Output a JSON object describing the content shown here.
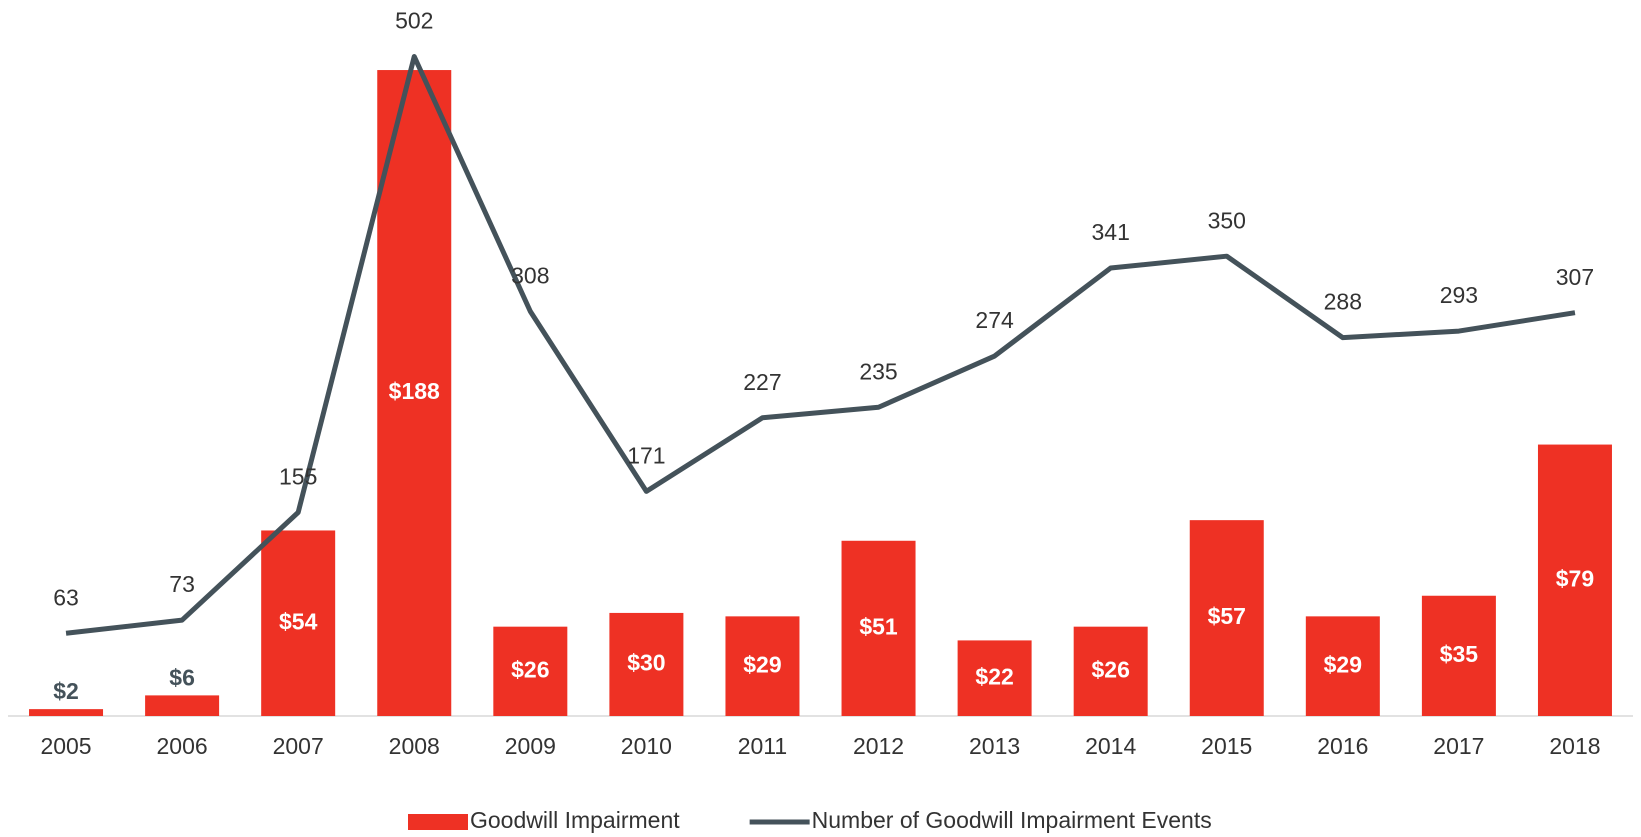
{
  "chart_data": {
    "type": "bar-line",
    "categories": [
      "2005",
      "2006",
      "2007",
      "2008",
      "2009",
      "2010",
      "2011",
      "2012",
      "2013",
      "2014",
      "2015",
      "2016",
      "2017",
      "2018"
    ],
    "series": [
      {
        "name": "Goodwill Impairment",
        "type": "bar",
        "color": "#ee3124",
        "values": [
          2,
          6,
          54,
          188,
          26,
          30,
          29,
          51,
          22,
          26,
          57,
          29,
          35,
          79
        ],
        "value_labels": [
          "$2",
          "$6",
          "$54",
          "$188",
          "$26",
          "$30",
          "$29",
          "$51",
          "$22",
          "$26",
          "$57",
          "$29",
          "$35",
          "$79"
        ]
      },
      {
        "name": "Number of Goodwill Impairment Events",
        "type": "line",
        "axis": "y2",
        "color": "#44525a",
        "values": [
          63,
          73,
          155,
          502,
          308,
          171,
          227,
          235,
          274,
          341,
          350,
          288,
          293,
          307
        ]
      }
    ],
    "ylim": [
      0,
      195
    ],
    "y2lim": [
      0,
      510
    ]
  }
}
